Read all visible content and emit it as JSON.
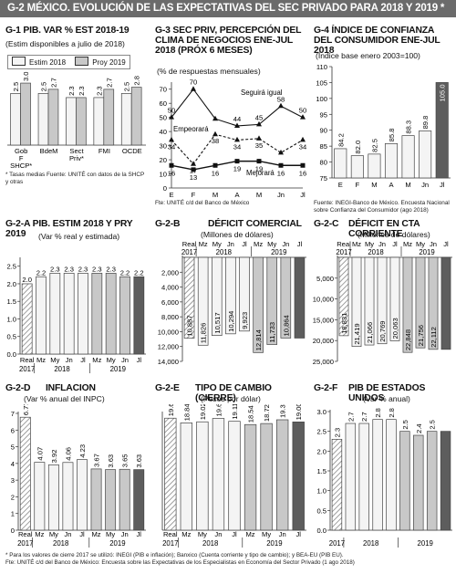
{
  "banner": "G-2   MÉXICO. EVOLUCIÓN DE LAS EXPECTATIVAS DEL SEC PRIVADO PARA 2018 Y 2019 *",
  "colors": {
    "light": "#f4f4f4",
    "mid": "#c8c8c8",
    "dark": "#5d5d5d",
    "hatch": "#777777"
  },
  "g1": {
    "title": "G-1  PIB. VAR % EST 2018-19",
    "subtitle": "(Estim disponibles a julio de 2018)",
    "legend": [
      "Estim 2018",
      "Proy 2019"
    ],
    "note": "* Tasas medias   Fuente: UNITÉ con datos de la SHCP y otras",
    "chart_data": {
      "type": "bar",
      "categories": [
        "Gob F SHCP*",
        "BdeM",
        "Sect Priv*",
        "FMI",
        "OCDE"
      ],
      "series": [
        {
          "name": "Estim 2018",
          "values": [
            2.5,
            2.5,
            2.3,
            2.3,
            2.5
          ]
        },
        {
          "name": "Proy 2019",
          "values": [
            3.0,
            2.7,
            2.3,
            2.7,
            2.8
          ]
        }
      ],
      "value_labels": [
        [
          "2.5",
          "3.0"
        ],
        [
          "2.5",
          "2.7"
        ],
        [
          "2.3",
          "2.3"
        ],
        [
          "2.3",
          "2.7"
        ],
        [
          "2.5",
          "2.8"
        ]
      ],
      "ylim": [
        0,
        3.4
      ]
    }
  },
  "g3": {
    "title": "G-3  SEC PRIV, PERCEPCIÓN DEL CLIMA DE NEGOCIOS ENE-JUL 2018 (PRÓX 6 MESES)",
    "subtitle": "(% de respuestas mensuales)",
    "note": "Fte: UNITÉ c/d del Banco de México",
    "chart_data": {
      "type": "line",
      "categories": [
        "E",
        "F",
        "M",
        "A",
        "M",
        "Jn",
        "Jl"
      ],
      "series": [
        {
          "name": "Seguirá igual",
          "values": [
            50,
            70,
            49,
            44,
            45,
            58,
            50
          ]
        },
        {
          "name": "Empeorará",
          "values": [
            34,
            17,
            38,
            34,
            35,
            25,
            34
          ]
        },
        {
          "name": "Mejorará",
          "values": [
            16,
            13,
            16,
            19,
            19,
            16,
            16
          ]
        }
      ],
      "value_labels": [
        [
          "50",
          "70",
          "",
          "44",
          "45",
          "58",
          "50"
        ],
        [
          "34",
          "17",
          "38",
          "34",
          "35",
          "",
          "34"
        ],
        [
          "16",
          "13",
          "16",
          "19",
          "19",
          "16",
          "16"
        ]
      ],
      "yticks": [
        "0",
        "10",
        "20",
        "30",
        "40",
        "50",
        "60",
        "70"
      ],
      "ylim": [
        0,
        75
      ]
    }
  },
  "g4": {
    "title": "G-4  ÍNDICE DE CONFIANZA DEL CONSUMIDOR ENE-JUL 2018",
    "subtitle": "(Índice base enero 2003=100)",
    "note": "Fuente: INEGI-Banco de México. Encuesta Nacional sobre Confianza del Consumidor (ago 2018)",
    "chart_data": {
      "type": "bar",
      "categories": [
        "E",
        "F",
        "M",
        "A",
        "M",
        "Jn",
        "Jl"
      ],
      "values": [
        84.2,
        82.0,
        82.5,
        85.8,
        88.3,
        89.8,
        105.0
      ],
      "value_labels": [
        "84.2",
        "82.0",
        "82.5",
        "85.8",
        "88.3",
        "89.8",
        "105.0"
      ],
      "yticks": [
        "75",
        "80",
        "85",
        "90",
        "95",
        "100",
        "105",
        "110"
      ],
      "ylim": [
        75,
        110
      ]
    }
  },
  "g2a": {
    "title": "G-2-A  PIB. ESTIM 2018 Y PRY 2019",
    "subtitle": "(Var % real y estimada)",
    "chart_data": {
      "type": "bar",
      "categories": [
        "Real",
        "Mz",
        "My",
        "Jn",
        "Jl",
        "Mz",
        "My",
        "Jn",
        "Jl"
      ],
      "year_labels": [
        "2017",
        "2018",
        "2019"
      ],
      "values": [
        2.0,
        2.2,
        2.3,
        2.3,
        2.3,
        2.3,
        2.3,
        2.2,
        2.2
      ],
      "value_labels": [
        "2.0",
        "2.2",
        "2.3",
        "2.3",
        "2.3",
        "2.3",
        "2.3",
        "2.2",
        "2.2"
      ],
      "yticks": [
        "0.0",
        "0.5",
        "1.0",
        "1.5",
        "2.0",
        "2.5"
      ],
      "ylim": [
        0,
        2.7
      ]
    }
  },
  "g2b": {
    "title": "DÉFICIT COMERCIAL",
    "tag": "G-2-B",
    "subtitle": "(Millones de dólares)",
    "chart_data": {
      "type": "bar",
      "categories": [
        "Real",
        "Mz",
        "My",
        "Jn",
        "Jl",
        "Mz",
        "My",
        "Jn",
        "Jl"
      ],
      "year_labels": [
        "2017",
        "2018",
        "2019"
      ],
      "values": [
        10887,
        11826,
        10517,
        10294,
        9923,
        12814,
        11733,
        10864,
        10864
      ],
      "value_labels": [
        "10,887",
        "11,826",
        "10,517",
        "10,294",
        "9,923",
        "12,814",
        "11,733",
        "10,864",
        ""
      ],
      "yticks": [
        "2,000",
        "4,000",
        "6,000",
        "8,000",
        "10,000",
        "12,000",
        "14,000"
      ],
      "ylim": [
        0,
        14000
      ]
    }
  },
  "g2c": {
    "title": "DÉFICIT EN CTA CORRIENTE",
    "tag": "G-2-C",
    "subtitle": "(Millones de dólares)",
    "chart_data": {
      "type": "bar",
      "categories": [
        "Real",
        "Mz",
        "My",
        "Jn",
        "Jl",
        "Mz",
        "My",
        "Jn",
        "Jl"
      ],
      "year_labels": [
        "2017",
        "2018",
        "2019"
      ],
      "values": [
        18831,
        21419,
        21066,
        20769,
        20063,
        22848,
        21756,
        22112,
        22112
      ],
      "value_labels": [
        "18,831",
        "21,419",
        "21,066",
        "20,769",
        "20,063",
        "22,848",
        "21,756",
        "22,112",
        ""
      ],
      "yticks": [
        "5,000",
        "10,000",
        "15,000",
        "20,000",
        "25,000"
      ],
      "ylim": [
        0,
        25000
      ]
    }
  },
  "g2d": {
    "title": "INFLACION",
    "tag": "G-2-D",
    "subtitle": "(Var % anual del INPC)",
    "chart_data": {
      "type": "bar",
      "categories": [
        "Real",
        "Mz",
        "My",
        "Jn",
        "Jl",
        "Mz",
        "My",
        "Jn",
        "Jl"
      ],
      "year_labels": [
        "2017",
        "2018",
        "2019"
      ],
      "values": [
        6.77,
        4.07,
        3.92,
        4.06,
        4.23,
        3.67,
        3.63,
        3.65,
        3.63
      ],
      "value_labels": [
        "6.77",
        "4.07",
        "3.92",
        "4.06",
        "4.23",
        "3.67",
        "3.63",
        "3.65",
        "3.63"
      ],
      "yticks": [
        "0",
        "1",
        "2",
        "3",
        "4",
        "5",
        "6",
        "7"
      ],
      "ylim": [
        0,
        7
      ]
    }
  },
  "g2e": {
    "title": "TIPO DE CAMBIO (CIERRE)",
    "tag": "G-2-E",
    "subtitle": "(Pesos por dólar)",
    "chart_data": {
      "type": "bar",
      "categories": [
        "Real",
        "Mz",
        "My",
        "Jn",
        "Jl",
        "Mz",
        "My",
        "Jn",
        "Jl"
      ],
      "year_labels": [
        "2017",
        "2018",
        "2019"
      ],
      "values": [
        19.66,
        18.84,
        19.02,
        19.62,
        19.11,
        18.54,
        18.72,
        19.38,
        19.0
      ],
      "value_labels": [
        "19.66",
        "18.84",
        "19.02",
        "19.62",
        "19.11",
        "18.54",
        "18.72",
        "19.38",
        "19.00"
      ],
      "ylim": [
        0,
        20.5
      ]
    }
  },
  "g2f": {
    "title": "PIB DE ESTADOS UNIDOS",
    "tag": "G-2-F",
    "subtitle": "(Var % anual)",
    "chart_data": {
      "type": "bar",
      "categories": [
        "",
        "",
        "",
        "",
        "",
        "",
        "",
        "",
        ""
      ],
      "year_labels": [
        "2017",
        "2018",
        "2019"
      ],
      "values": [
        2.3,
        2.7,
        2.7,
        2.8,
        2.8,
        2.5,
        2.4,
        2.5,
        2.5
      ],
      "value_labels": [
        "2.3",
        "2.7",
        "2.7",
        "2.8",
        "2.8",
        "2.5",
        "2.4",
        "2.5",
        ""
      ],
      "yticks": [
        "0.0",
        "0.5",
        "1.0",
        "1.5",
        "2.0",
        "2.5",
        "3.0"
      ],
      "ylim": [
        0,
        3.0
      ]
    }
  },
  "footer": [
    "* Para los valores de cierre 2017 se utilizó: INEGI (PIB e inflación); Banxico (Cuenta corriente y tipo de cambio); y BEA-EU (PIB EU).",
    "Fte: UNITÉ c/d del Banco de México: Encuesta sobre las Expectativas de los Especialistas en Economía del Sector Privado (1 ago 2018)"
  ]
}
